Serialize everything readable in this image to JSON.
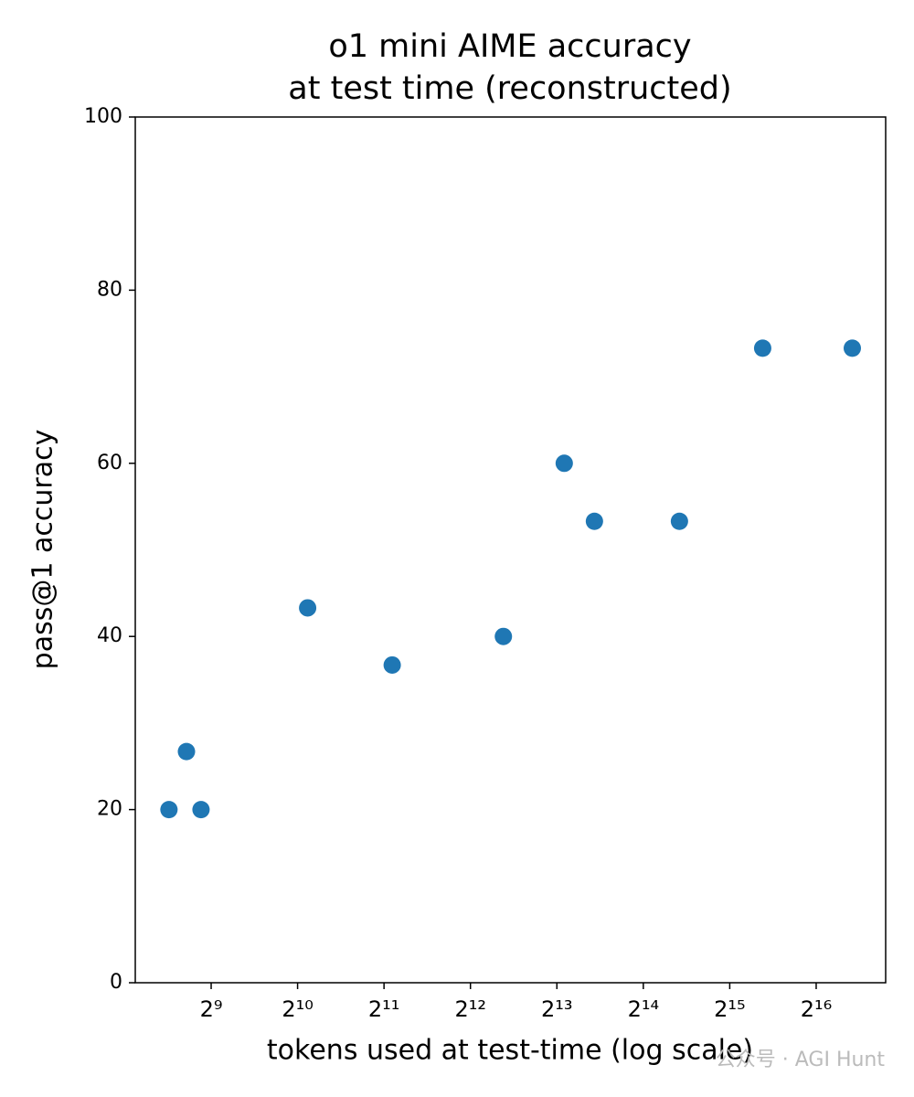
{
  "chart_data": {
    "type": "scatter",
    "title": [
      "o1 mini AIME accuracy",
      "at test time (reconstructed)"
    ],
    "x_label": "tokens used at test-time (log scale)",
    "y_label": "pass@1 accuracy",
    "watermark": "公众号 · AGI Hunt",
    "xlog": true,
    "x": [
      365,
      420,
      472,
      1110,
      2187,
      5334,
      8690,
      11070,
      21890,
      42670,
      87560
    ],
    "series": [
      {
        "color": "#1f77b4",
        "values": [
          20,
          26.7,
          20,
          43.3,
          36.7,
          40,
          60,
          53.3,
          53.3,
          73.3,
          73.3
        ]
      }
    ],
    "xlim": [
      278.6,
      114420
    ],
    "xticks": [
      {
        "value": 512,
        "label": "2⁹"
      },
      {
        "value": 1024,
        "label": "2¹⁰"
      },
      {
        "value": 2048,
        "label": "2¹¹"
      },
      {
        "value": 4096,
        "label": "2¹²"
      },
      {
        "value": 8192,
        "label": "2¹³"
      },
      {
        "value": 16384,
        "label": "2¹⁴"
      },
      {
        "value": 32768,
        "label": "2¹⁵"
      },
      {
        "value": 65536,
        "label": "2¹⁶"
      }
    ],
    "ylim": [
      0,
      100
    ],
    "yticks": [
      0,
      20,
      40,
      60,
      80,
      100
    ]
  }
}
